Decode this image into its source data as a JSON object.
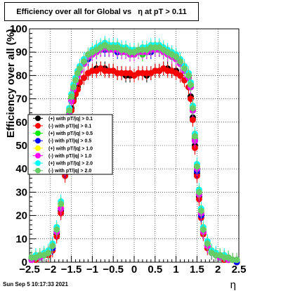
{
  "chart_data": {
    "type": "scatter",
    "title": "Efficiency over all for Global vs   η at pT > 0.11",
    "xlabel": "η",
    "ylabel": "Efficiency over all (%)",
    "xlim": [
      -2.5,
      2.5
    ],
    "ylim": [
      0,
      100
    ],
    "xticks": [
      -2.5,
      -2,
      -1.5,
      -1,
      -0.5,
      0,
      0.5,
      1,
      1.5,
      2,
      2.5
    ],
    "xtick_labels": [
      "−2.5",
      "−2",
      "−1.5",
      "−1",
      "−0.5",
      "0",
      "0.5",
      "1",
      "1.5",
      "2",
      "2.5"
    ],
    "yticks": [
      0,
      10,
      20,
      30,
      40,
      50,
      60,
      70,
      80,
      90,
      100
    ],
    "ytick_labels": [
      "0",
      "10",
      "20",
      "30",
      "40",
      "50",
      "60",
      "70",
      "80",
      "90",
      "100"
    ],
    "grid": true,
    "legend_position": "center-left",
    "x": [
      -2.45,
      -2.35,
      -2.25,
      -2.15,
      -2.05,
      -1.95,
      -1.85,
      -1.75,
      -1.65,
      -1.6,
      -1.55,
      -1.5,
      -1.45,
      -1.4,
      -1.35,
      -1.3,
      -1.2,
      -1.1,
      -1.0,
      -0.9,
      -0.8,
      -0.7,
      -0.6,
      -0.5,
      -0.4,
      -0.3,
      -0.2,
      -0.1,
      0.0,
      0.1,
      0.2,
      0.3,
      0.4,
      0.5,
      0.6,
      0.7,
      0.8,
      0.9,
      1.0,
      1.1,
      1.2,
      1.3,
      1.35,
      1.4,
      1.45,
      1.5,
      1.55,
      1.6,
      1.65,
      1.75,
      1.85,
      1.95,
      2.05,
      2.15,
      2.25,
      2.35,
      2.45
    ],
    "series": [
      {
        "name": "(+) with pT/|q| > 0.1",
        "color": "#000000",
        "values": [
          1,
          2,
          2,
          3,
          4,
          6,
          12,
          22,
          38,
          50,
          60,
          66,
          70,
          72,
          75,
          77,
          79,
          81,
          82,
          83,
          83,
          83,
          82,
          82,
          81,
          81,
          80,
          80,
          80,
          81,
          81,
          80,
          81,
          82,
          82,
          83,
          83,
          82,
          82,
          80,
          78,
          75,
          71,
          62,
          50,
          38,
          28,
          20,
          13,
          7,
          4,
          3,
          2,
          2,
          1,
          1,
          0
        ]
      },
      {
        "name": "(-) with pT/|q| > 0.1",
        "color": "#ff0000",
        "values": [
          1,
          1,
          2,
          3,
          3,
          5,
          11,
          21,
          37,
          49,
          59,
          65,
          69,
          72,
          74,
          77,
          79,
          81,
          82,
          82,
          83,
          82,
          82,
          82,
          81,
          81,
          81,
          81,
          80,
          81,
          81,
          81,
          81,
          82,
          82,
          83,
          82,
          82,
          81,
          80,
          78,
          75,
          70,
          61,
          49,
          37,
          27,
          19,
          12,
          6,
          4,
          3,
          2,
          1,
          1,
          1,
          0
        ]
      },
      {
        "name": "(+) with pT/|q| > 0.5",
        "color": "#00ee00",
        "values": [
          2,
          2,
          3,
          3,
          4,
          7,
          13,
          24,
          40,
          53,
          64,
          70,
          75,
          78,
          80,
          83,
          86,
          88,
          90,
          91,
          92,
          92,
          92,
          91,
          92,
          91,
          90,
          90,
          90,
          90,
          89,
          91,
          91,
          92,
          91,
          91,
          90,
          89,
          88,
          86,
          83,
          80,
          76,
          66,
          53,
          40,
          30,
          21,
          14,
          8,
          4,
          3,
          3,
          2,
          2,
          1,
          1
        ]
      },
      {
        "name": "(-) with pT/|q| > 0.5",
        "color": "#0000ff",
        "values": [
          1,
          2,
          2,
          3,
          4,
          6,
          13,
          23,
          39,
          52,
          63,
          69,
          74,
          77,
          80,
          82,
          85,
          87,
          89,
          90,
          91,
          91,
          91,
          91,
          90,
          90,
          90,
          89,
          89,
          90,
          90,
          90,
          90,
          91,
          91,
          90,
          90,
          89,
          87,
          85,
          82,
          79,
          75,
          65,
          52,
          39,
          29,
          20,
          13,
          7,
          4,
          3,
          2,
          2,
          1,
          1,
          0
        ]
      },
      {
        "name": "(+) with pT/|q| > 1.0",
        "color": "#ffff00",
        "values": [
          2,
          2,
          3,
          4,
          4,
          7,
          14,
          24,
          41,
          54,
          65,
          71,
          75,
          78,
          81,
          83,
          86,
          88,
          90,
          91,
          92,
          93,
          92,
          92,
          92,
          91,
          91,
          90,
          90,
          90,
          90,
          91,
          91,
          92,
          92,
          91,
          90,
          89,
          88,
          86,
          84,
          80,
          76,
          66,
          54,
          41,
          30,
          22,
          14,
          8,
          5,
          3,
          3,
          2,
          2,
          1,
          1
        ]
      },
      {
        "name": "(-) with pT/|q| > 1.0",
        "color": "#ff00ff",
        "values": [
          1,
          2,
          2,
          3,
          4,
          7,
          13,
          23,
          40,
          52,
          63,
          69,
          74,
          77,
          80,
          82,
          85,
          88,
          89,
          90,
          91,
          92,
          91,
          91,
          91,
          90,
          90,
          89,
          89,
          90,
          90,
          90,
          91,
          91,
          91,
          90,
          89,
          88,
          87,
          85,
          82,
          79,
          75,
          65,
          52,
          40,
          29,
          21,
          13,
          7,
          4,
          3,
          2,
          2,
          1,
          1,
          1
        ]
      },
      {
        "name": "(+) with pT/|q| > 2.0",
        "color": "#00ffff",
        "values": [
          2,
          3,
          3,
          4,
          5,
          8,
          15,
          26,
          42,
          55,
          66,
          72,
          76,
          79,
          82,
          84,
          87,
          89,
          91,
          92,
          93,
          94,
          93,
          93,
          93,
          92,
          92,
          91,
          91,
          91,
          92,
          92,
          93,
          93,
          93,
          92,
          91,
          90,
          89,
          87,
          84,
          81,
          77,
          67,
          55,
          42,
          31,
          23,
          15,
          9,
          5,
          4,
          3,
          3,
          2,
          1,
          1
        ]
      },
      {
        "name": "(-) with pT/|q| > 2.0",
        "color": "#66cc66",
        "values": [
          2,
          2,
          3,
          3,
          4,
          7,
          14,
          25,
          41,
          54,
          65,
          71,
          75,
          78,
          81,
          83,
          86,
          89,
          90,
          91,
          92,
          93,
          92,
          92,
          92,
          91,
          91,
          90,
          90,
          91,
          91,
          91,
          92,
          92,
          92,
          91,
          90,
          89,
          88,
          86,
          83,
          80,
          76,
          66,
          54,
          41,
          30,
          22,
          14,
          8,
          4,
          3,
          3,
          2,
          2,
          1,
          1
        ]
      }
    ]
  },
  "footer": {
    "timestamp": "Sun Sep  5 10:17:33 2021"
  }
}
